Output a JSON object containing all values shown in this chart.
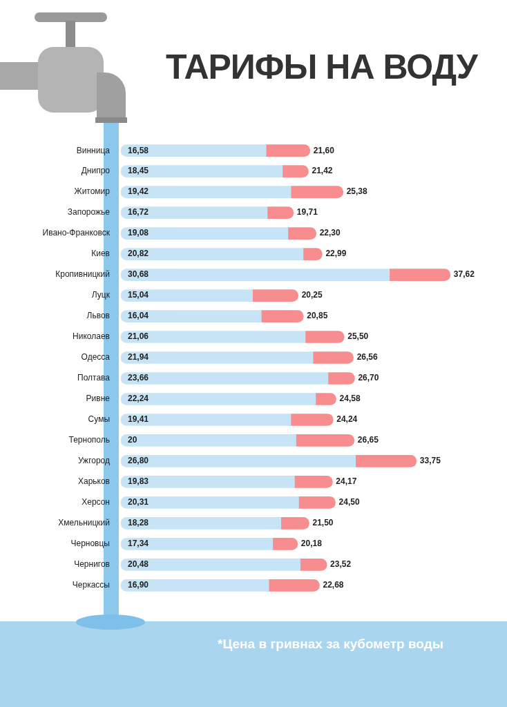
{
  "chart_data": {
    "type": "bar",
    "orientation": "horizontal",
    "title": "ТАРИФЫ НА ВОДУ",
    "annotations": [
      "*Цена в гривнах за кубометр воды"
    ],
    "categories": [
      "Винница",
      "Днипро",
      "Житомир",
      "Запорожье",
      "Ивано-Франковск",
      "Киев",
      "Кропивницкий",
      "Луцк",
      "Львов",
      "Николаев",
      "Одесса",
      "Полтава",
      "Ривне",
      "Сумы",
      "Тернополь",
      "Ужгород",
      "Харьков",
      "Херсон",
      "Хмельницкий",
      "Черновцы",
      "Чернигов",
      "Черкассы"
    ],
    "series": [
      {
        "color": "#c6e4f6",
        "values": [
          16.58,
          18.45,
          19.42,
          16.72,
          19.08,
          20.82,
          30.68,
          15.04,
          16.04,
          21.06,
          21.94,
          23.66,
          22.24,
          19.41,
          20,
          26.8,
          19.83,
          20.31,
          18.28,
          17.34,
          20.48,
          16.9
        ],
        "value_labels": [
          "16,58",
          "18,45",
          "19,42",
          "16,72",
          "19,08",
          "20,82",
          "30,68",
          "15,04",
          "16,04",
          "21,06",
          "21,94",
          "23,66",
          "22,24",
          "19,41",
          "20",
          "26,80",
          "19,83",
          "20,31",
          "18,28",
          "17,34",
          "20,48",
          "16,90"
        ]
      },
      {
        "color": "#f78d8e",
        "values": [
          5.02,
          2.97,
          5.96,
          2.99,
          3.22,
          2.17,
          6.94,
          5.21,
          4.81,
          4.44,
          4.62,
          3.04,
          2.34,
          4.83,
          6.65,
          6.95,
          4.34,
          4.19,
          3.22,
          2.84,
          3.04,
          5.78
        ]
      }
    ],
    "stacked": true,
    "totals": [
      "21,60",
      "21,42",
      "25,38",
      "19,71",
      "22,30",
      "22,99",
      "37,62",
      "20,25",
      "20,85",
      "25,50",
      "26,56",
      "26,70",
      "24,58",
      "24,24",
      "26,65",
      "33,75",
      "24,17",
      "24,50",
      "21,50",
      "20,18",
      "23,52",
      "22,68"
    ],
    "tick_labels": "y"
  }
}
